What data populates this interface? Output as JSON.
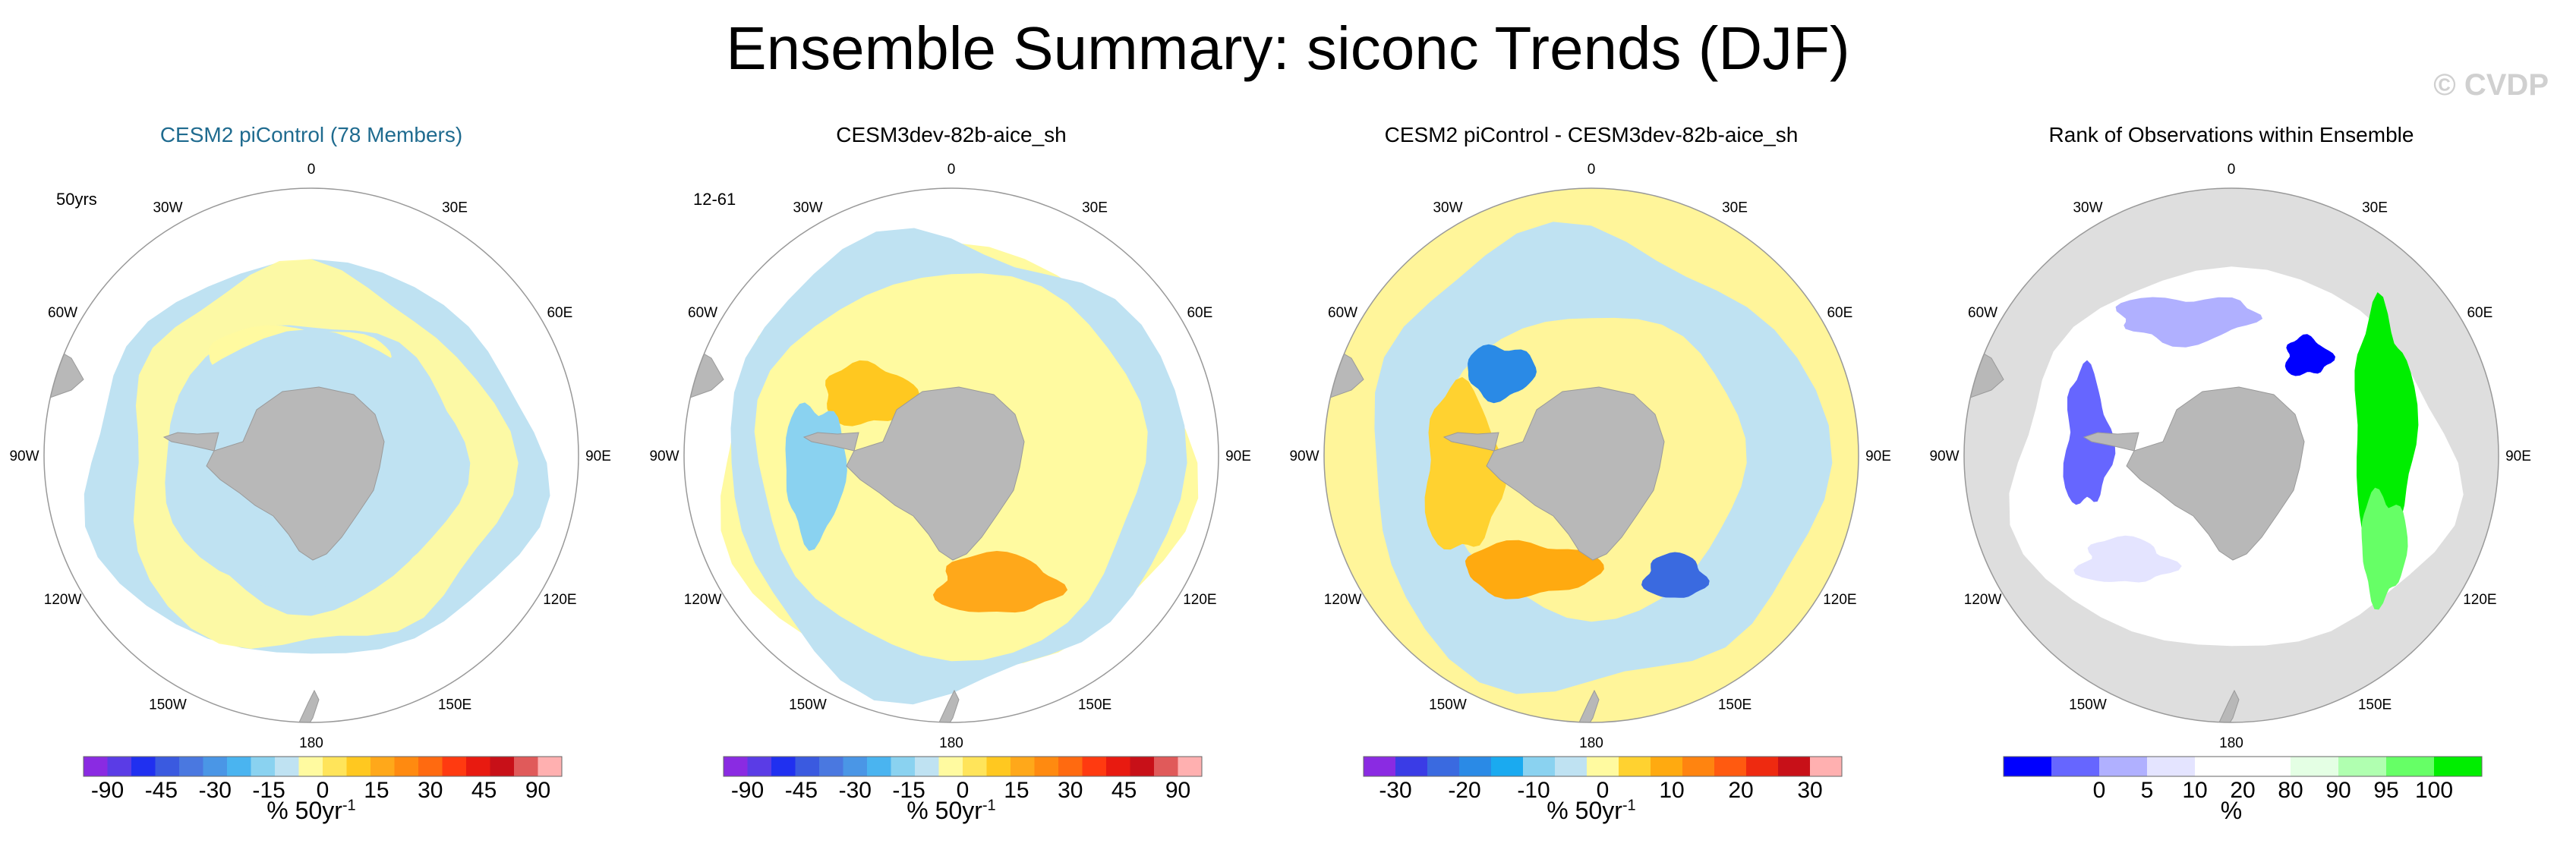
{
  "title": "Ensemble Summary: siconc Trends (DJF)",
  "watermark": "© CVDP",
  "colors": {
    "ocean_fill": "#ffffff",
    "land": "#b8b8b8",
    "rim": "#999999",
    "title_blue": "#1f6b8f",
    "diff_bg": "#fff59a"
  },
  "longitude_labels": [
    "0",
    "30E",
    "60E",
    "90E",
    "120E",
    "150E",
    "180",
    "150W",
    "120W",
    "90W",
    "60W",
    "30W"
  ],
  "panels": [
    {
      "title": "CESM2 piControl (78 Members)",
      "note": "50yrs",
      "colorbar": {
        "colors": [
          "#8a2be2",
          "#5a3ce6",
          "#2030f0",
          "#3a5ae0",
          "#4a78e0",
          "#4a96e6",
          "#4ab4f0",
          "#8ad2f0",
          "#bfe2f2",
          "#fffaa0",
          "#ffe45a",
          "#ffc820",
          "#ffa81a",
          "#ff8a10",
          "#ff6a10",
          "#ff3a10",
          "#e81a10",
          "#c81018",
          "#e05a5a",
          "#ffb0b0"
        ],
        "labels": [
          "-90",
          "-45",
          "-30",
          "-15",
          "0",
          "15",
          "30",
          "45",
          "90"
        ],
        "unit": "% 50yr",
        "unit_sup": "-1"
      }
    },
    {
      "title": "CESM3dev-82b-aice_sh",
      "note": "12-61",
      "colorbar": {
        "colors": [
          "#8a2be2",
          "#5a3ce6",
          "#2030f0",
          "#3a5ae0",
          "#4a78e0",
          "#4a96e6",
          "#4ab4f0",
          "#8ad2f0",
          "#bfe2f2",
          "#fffaa0",
          "#ffe45a",
          "#ffc820",
          "#ffa81a",
          "#ff8a10",
          "#ff6a10",
          "#ff3a10",
          "#e81a10",
          "#c81018",
          "#e05a5a",
          "#ffb0b0"
        ],
        "labels": [
          "-90",
          "-45",
          "-30",
          "-15",
          "0",
          "15",
          "30",
          "45",
          "90"
        ],
        "unit": "% 50yr",
        "unit_sup": "-1"
      }
    },
    {
      "title": "CESM2 piControl - CESM3dev-82b-aice_sh",
      "note": "",
      "colorbar": {
        "colors": [
          "#8a2be2",
          "#3a3ce6",
          "#3a6ae0",
          "#2a8ae6",
          "#1aaaf0",
          "#8ad2f0",
          "#bfe2f2",
          "#fffaa0",
          "#ffd230",
          "#ffaa10",
          "#ff8410",
          "#ff5a10",
          "#ee2a10",
          "#c81018",
          "#ffb0b0"
        ],
        "labels": [
          "-30",
          "-20",
          "-10",
          "0",
          "10",
          "20",
          "30"
        ],
        "unit": "% 50yr",
        "unit_sup": "-1"
      }
    },
    {
      "title": "Rank of Observations within Ensemble",
      "note": "",
      "colorbar": {
        "colors": [
          "#0000ff",
          "#6666ff",
          "#b0b0ff",
          "#e4e4ff",
          "#ffffff",
          "#ffffff",
          "#e4ffe4",
          "#b0ffb0",
          "#66ff66",
          "#00ee00"
        ],
        "labels": [
          "0",
          "5",
          "10",
          "20",
          "80",
          "90",
          "95",
          "100"
        ],
        "unit": "%",
        "unit_sup": ""
      }
    }
  ],
  "chart_data": [
    {
      "type": "heatmap",
      "title": "CESM2 piControl (78 Members)",
      "projection": "south polar stereographic",
      "variable": "siconc trend DJF",
      "colorbar_labels": [
        -90,
        -45,
        -30,
        -15,
        0,
        15,
        30,
        45,
        90
      ],
      "units": "% 50yr^-1",
      "annotation": "50yrs"
    },
    {
      "type": "heatmap",
      "title": "CESM3dev-82b-aice_sh",
      "projection": "south polar stereographic",
      "variable": "siconc trend DJF",
      "colorbar_labels": [
        -90,
        -45,
        -30,
        -15,
        0,
        15,
        30,
        45,
        90
      ],
      "units": "% 50yr^-1",
      "annotation": "12-61"
    },
    {
      "type": "heatmap",
      "title": "CESM2 piControl - CESM3dev-82b-aice_sh",
      "projection": "south polar stereographic",
      "variable": "siconc trend difference",
      "colorbar_labels": [
        -30,
        -20,
        -10,
        0,
        10,
        20,
        30
      ],
      "units": "% 50yr^-1"
    },
    {
      "type": "heatmap",
      "title": "Rank of Observations within Ensemble",
      "projection": "south polar stereographic",
      "variable": "rank",
      "colorbar_labels": [
        0,
        5,
        10,
        20,
        80,
        90,
        95,
        100
      ],
      "units": "%"
    }
  ]
}
